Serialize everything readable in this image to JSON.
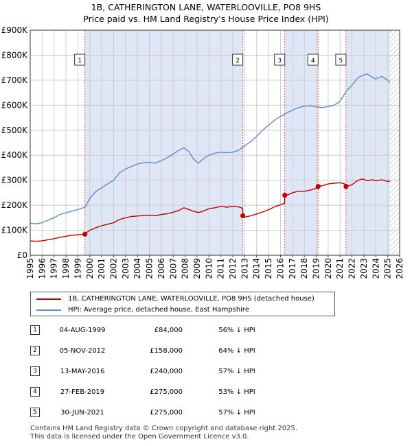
{
  "title": {
    "line1": "1B, CATHERINGTON LANE, WATERLOOVILLE, PO8 9HS",
    "line2": "Price paid vs. HM Land Registry's House Price Index (HPI)"
  },
  "legend": {
    "property_label": "1B, CATHERINGTON LANE, WATERLOOVILLE, PO8 9HS (detached house)",
    "hpi_label": "HPI: Average price, detached house, East Hampshire"
  },
  "colors": {
    "property": "#c00000",
    "hpi": "#5b8bd0",
    "shade": "#dfe6f6",
    "marker_line": "#e05050",
    "grid": "#cccccc",
    "hatch": "#aaaaaa"
  },
  "sales": [
    {
      "num": "1",
      "date": "04-AUG-1999",
      "price": "£84,000",
      "hpi": "56% ↓ HPI"
    },
    {
      "num": "2",
      "date": "05-NOV-2012",
      "price": "£158,000",
      "hpi": "64% ↓ HPI"
    },
    {
      "num": "3",
      "date": "13-MAY-2016",
      "price": "£240,000",
      "hpi": "57% ↓ HPI"
    },
    {
      "num": "4",
      "date": "27-FEB-2019",
      "price": "£275,000",
      "hpi": "53% ↓ HPI"
    },
    {
      "num": "5",
      "date": "30-JUN-2021",
      "price": "£275,000",
      "hpi": "57% ↓ HPI"
    }
  ],
  "footer": {
    "line1": "Contains HM Land Registry data © Crown copyright and database right 2025.",
    "line2": "This data is licensed under the Open Government Licence v3.0."
  },
  "chart_data": {
    "type": "line",
    "title": "1B, CATHERINGTON LANE, WATERLOOVILLE, PO8 9HS — Price paid vs. HM Land Registry's House Price Index (HPI)",
    "xlabel": "",
    "ylabel": "",
    "xlim": [
      1995,
      2026
    ],
    "ylim": [
      0,
      900000
    ],
    "x_ticks": [
      "1995",
      "1996",
      "1997",
      "1998",
      "1999",
      "2000",
      "2001",
      "2002",
      "2003",
      "2004",
      "2005",
      "2006",
      "2007",
      "2008",
      "2009",
      "2010",
      "2011",
      "2012",
      "2013",
      "2014",
      "2015",
      "2016",
      "2017",
      "2018",
      "2019",
      "2020",
      "2021",
      "2022",
      "2023",
      "2024",
      "2025",
      "2026"
    ],
    "y_ticks": [
      {
        "value": 0,
        "label": "£0"
      },
      {
        "value": 100000,
        "label": "£100K"
      },
      {
        "value": 200000,
        "label": "£200K"
      },
      {
        "value": 300000,
        "label": "£300K"
      },
      {
        "value": 400000,
        "label": "£400K"
      },
      {
        "value": 500000,
        "label": "£500K"
      },
      {
        "value": 600000,
        "label": "£600K"
      },
      {
        "value": 700000,
        "label": "£700K"
      },
      {
        "value": 800000,
        "label": "£800K"
      },
      {
        "value": 900000,
        "label": "£900K"
      }
    ],
    "grid": true,
    "shaded_regions": [
      [
        1999.59,
        2012.84
      ],
      [
        2016.36,
        2019.16
      ],
      [
        2021.5,
        2025.2
      ]
    ],
    "hatched_region": [
      2025.2,
      2026
    ],
    "sale_markers": [
      {
        "label": "1",
        "x": 1999.59,
        "y": 84000
      },
      {
        "label": "2",
        "x": 2012.84,
        "y": 158000
      },
      {
        "label": "3",
        "x": 2016.36,
        "y": 240000
      },
      {
        "label": "4",
        "x": 2019.16,
        "y": 275000
      },
      {
        "label": "5",
        "x": 2021.5,
        "y": 275000
      }
    ],
    "series": [
      {
        "name": "1B, CATHERINGTON LANE, WATERLOOVILLE, PO8 9HS (detached house)",
        "x": [
          1995,
          1995.5,
          1996,
          1996.5,
          1997,
          1997.5,
          1998,
          1998.5,
          1999,
          1999.59,
          1999.6,
          2000,
          2000.5,
          2001,
          2001.5,
          2002,
          2002.5,
          2003,
          2003.5,
          2004,
          2004.5,
          2005,
          2005.5,
          2006,
          2006.5,
          2007,
          2007.5,
          2007.9,
          2008.3,
          2008.7,
          2009.1,
          2009.5,
          2010,
          2010.5,
          2011,
          2011.5,
          2012,
          2012.5,
          2012.83,
          2012.84,
          2013,
          2013.5,
          2014,
          2014.5,
          2015,
          2015.5,
          2016,
          2016.35,
          2016.36,
          2016.7,
          2017,
          2017.5,
          2018,
          2018.5,
          2019.15,
          2019.16,
          2019.5,
          2020,
          2020.5,
          2021,
          2021.49,
          2021.5,
          2022,
          2022.5,
          2022.9,
          2023.3,
          2023.7,
          2024,
          2024.5,
          2025,
          2025.2
        ],
        "values": [
          57000,
          56000,
          58000,
          62000,
          66000,
          72000,
          76000,
          80000,
          82000,
          84000,
          86000,
          100000,
          110000,
          118000,
          124000,
          130000,
          143000,
          150000,
          155000,
          157000,
          159000,
          160000,
          158000,
          163000,
          166000,
          172000,
          180000,
          190000,
          183000,
          176000,
          171000,
          176000,
          186000,
          190000,
          196000,
          192000,
          196000,
          193000,
          188000,
          158000,
          152000,
          158000,
          165000,
          173000,
          182000,
          194000,
          202000,
          208000,
          240000,
          243000,
          250000,
          256000,
          256000,
          260000,
          270000,
          275000,
          278000,
          285000,
          288000,
          290000,
          284000,
          275000,
          282000,
          300000,
          305000,
          298000,
          302000,
          298000,
          302000,
          295000,
          298000
        ]
      },
      {
        "name": "HPI: Average price, detached house, East Hampshire",
        "x": [
          1995,
          1995.5,
          1996,
          1996.5,
          1997,
          1997.5,
          1998,
          1998.5,
          1999,
          1999.6,
          2000,
          2000.5,
          2001,
          2001.5,
          2002,
          2002.5,
          2003,
          2003.5,
          2004,
          2004.5,
          2005,
          2005.5,
          2006,
          2006.5,
          2007,
          2007.5,
          2007.9,
          2008.3,
          2008.7,
          2009.1,
          2009.5,
          2010,
          2010.5,
          2011,
          2011.5,
          2012,
          2012.5,
          2013,
          2013.5,
          2014,
          2014.5,
          2015,
          2015.5,
          2016,
          2016.5,
          2017,
          2017.5,
          2018,
          2018.5,
          2019,
          2019.5,
          2020,
          2020.5,
          2021,
          2021.5,
          2022,
          2022.5,
          2022.9,
          2023.3,
          2023.7,
          2024,
          2024.5,
          2025,
          2025.2
        ],
        "values": [
          128000,
          126000,
          130000,
          140000,
          150000,
          163000,
          170000,
          176000,
          183000,
          192000,
          228000,
          255000,
          270000,
          285000,
          300000,
          330000,
          345000,
          355000,
          365000,
          370000,
          372000,
          368000,
          378000,
          390000,
          405000,
          420000,
          430000,
          415000,
          385000,
          368000,
          385000,
          400000,
          408000,
          412000,
          410000,
          412000,
          420000,
          438000,
          455000,
          475000,
          500000,
          520000,
          540000,
          555000,
          568000,
          580000,
          590000,
          596000,
          598000,
          594000,
          590000,
          595000,
          600000,
          615000,
          655000,
          680000,
          710000,
          720000,
          725000,
          712000,
          705000,
          715000,
          700000,
          690000
        ]
      }
    ]
  }
}
